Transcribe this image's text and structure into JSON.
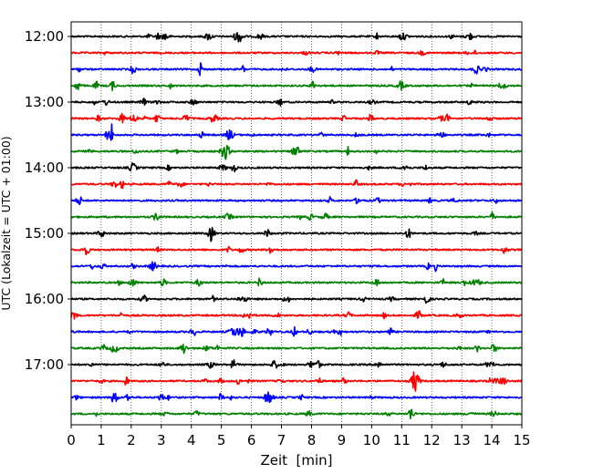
{
  "chart_data": {
    "type": "line",
    "title": "",
    "xlabel": "Zeit  [min]",
    "ylabel": "UTC (Lokalzeit = UTC + 01:00)",
    "xlim": [
      0,
      15
    ],
    "xticks": [
      "0",
      "1",
      "2",
      "3",
      "4",
      "5",
      "6",
      "7",
      "8",
      "9",
      "10",
      "11",
      "12",
      "13",
      "14",
      "15"
    ],
    "yticks": [
      "12:00",
      "13:00",
      "14:00",
      "15:00",
      "16:00",
      "17:00"
    ],
    "trace_colors": [
      "#000000",
      "#ff0000",
      "#0000ff",
      "#008000"
    ],
    "grid": "vertical-dotted",
    "series": [
      {
        "start": "12:00",
        "color": "#000000"
      },
      {
        "start": "12:15",
        "color": "#ff0000"
      },
      {
        "start": "12:30",
        "color": "#0000ff"
      },
      {
        "start": "12:45",
        "color": "#008000"
      },
      {
        "start": "13:00",
        "color": "#000000"
      },
      {
        "start": "13:15",
        "color": "#ff0000"
      },
      {
        "start": "13:30",
        "color": "#0000ff"
      },
      {
        "start": "13:45",
        "color": "#008000"
      },
      {
        "start": "14:00",
        "color": "#000000"
      },
      {
        "start": "14:15",
        "color": "#ff0000"
      },
      {
        "start": "14:30",
        "color": "#0000ff"
      },
      {
        "start": "14:45",
        "color": "#008000"
      },
      {
        "start": "15:00",
        "color": "#000000"
      },
      {
        "start": "15:15",
        "color": "#ff0000"
      },
      {
        "start": "15:30",
        "color": "#0000ff"
      },
      {
        "start": "15:45",
        "color": "#008000"
      },
      {
        "start": "16:00",
        "color": "#000000"
      },
      {
        "start": "16:15",
        "color": "#ff0000"
      },
      {
        "start": "16:30",
        "color": "#0000ff"
      },
      {
        "start": "16:45",
        "color": "#008000"
      },
      {
        "start": "17:00",
        "color": "#000000"
      },
      {
        "start": "17:15",
        "color": "#ff0000"
      },
      {
        "start": "17:30",
        "color": "#0000ff"
      },
      {
        "start": "17:45",
        "color": "#008000"
      }
    ]
  }
}
